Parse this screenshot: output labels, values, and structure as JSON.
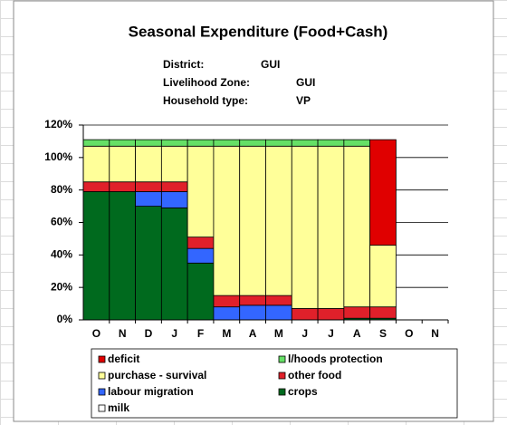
{
  "chart_data": {
    "type": "stacked_bar",
    "title": "Seasonal Expenditure (Food+Cash)",
    "info": [
      {
        "label": "District:",
        "value": "GUI"
      },
      {
        "label": "Livelihood Zone:",
        "value": "GUI"
      },
      {
        "label": "Household type:",
        "value": "VP"
      }
    ],
    "categories": [
      "O",
      "N",
      "D",
      "J",
      "F",
      "M",
      "A",
      "M",
      "J",
      "J",
      "A",
      "S",
      "O",
      "N"
    ],
    "series": [
      {
        "name": "crops",
        "color": "#006a1e",
        "values": [
          79,
          79,
          70,
          69,
          35,
          0,
          0,
          0,
          0,
          0,
          1,
          1,
          null,
          null
        ]
      },
      {
        "name": "labour migration",
        "color": "#3366ff",
        "values": [
          0,
          0,
          9,
          10,
          9,
          8,
          9,
          9,
          0,
          0,
          0,
          0,
          null,
          null
        ]
      },
      {
        "name": "other food",
        "color": "#e0202a",
        "values": [
          6,
          6,
          6,
          6,
          7,
          7,
          6,
          6,
          7,
          7,
          7,
          7,
          null,
          null
        ]
      },
      {
        "name": "purchase - survival",
        "color": "#ffff99",
        "values": [
          22,
          22,
          22,
          22,
          56,
          92,
          92,
          92,
          100,
          100,
          99,
          38,
          null,
          null
        ]
      },
      {
        "name": "l/hoods protection",
        "color": "#66e066",
        "values": [
          4,
          4,
          4,
          4,
          4,
          4,
          4,
          4,
          4,
          4,
          4,
          0,
          null,
          null
        ]
      },
      {
        "name": "deficit",
        "color": "#e00000",
        "values": [
          0,
          0,
          0,
          0,
          0,
          0,
          0,
          0,
          0,
          0,
          0,
          65,
          null,
          null
        ]
      },
      {
        "name": "milk",
        "color": "#ffffff",
        "values": [
          0,
          0,
          0,
          0,
          0,
          0,
          0,
          0,
          0,
          0,
          0,
          0,
          null,
          null
        ]
      }
    ],
    "ylim": [
      0,
      120
    ],
    "yticks": [
      {
        "value": 0,
        "label": "0%"
      },
      {
        "value": 20,
        "label": "20%"
      },
      {
        "value": 40,
        "label": "40%"
      },
      {
        "value": 60,
        "label": "60%"
      },
      {
        "value": 80,
        "label": "80%"
      },
      {
        "value": 100,
        "label": "100%"
      },
      {
        "value": 120,
        "label": "120%"
      }
    ],
    "grid": true
  }
}
